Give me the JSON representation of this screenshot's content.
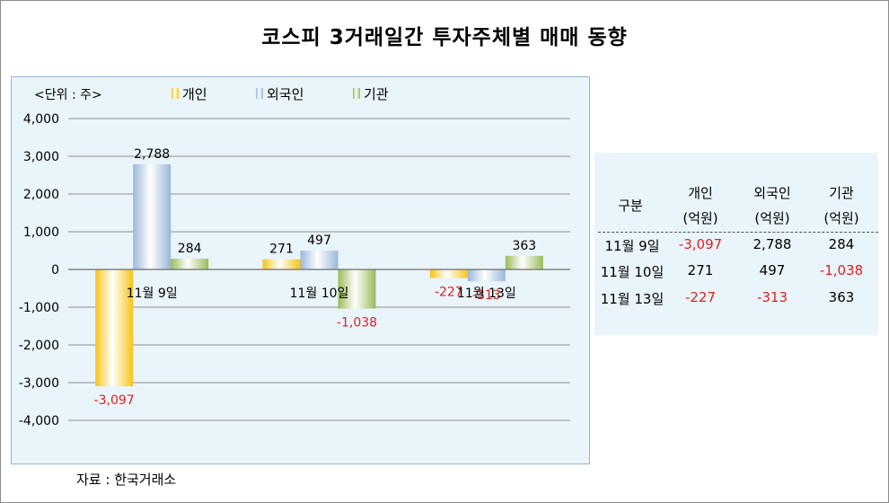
{
  "title": "코스피 3거래일간 투자주체별 매매 동향",
  "source_note": "자료 : 한국거래소",
  "chart_data": {
    "type": "bar",
    "unit_label": "<단위 : 주>",
    "categories": [
      "11월 9일",
      "11월 10일",
      "11월 13일"
    ],
    "series": [
      {
        "name": "개인",
        "values": [
          -3097,
          271,
          -227
        ],
        "color": "#f5c518"
      },
      {
        "name": "외국인",
        "values": [
          2788,
          497,
          -313
        ],
        "color": "#9bb7da"
      },
      {
        "name": "기관",
        "values": [
          284,
          -1038,
          363
        ],
        "color": "#9bbb59"
      }
    ],
    "ylim": [
      -4000,
      4000
    ],
    "yticks": [
      4000,
      3000,
      2000,
      1000,
      0,
      -1000,
      -2000,
      -3000,
      -4000
    ],
    "ytick_labels": [
      "4,000",
      "3,000",
      "2,000",
      "1,000",
      "0",
      "-1,000",
      "-2,000",
      "-3,000",
      "-4,000"
    ],
    "data_labels": [
      [
        "-3,097",
        "2,788",
        "284"
      ],
      [
        "271",
        "497",
        "-1,038"
      ],
      [
        "-227",
        "-313",
        "363"
      ]
    ],
    "grid": true,
    "legend_position": "top",
    "negative_label_color": "#e0211b"
  },
  "table": {
    "headers": [
      {
        "line1": "구분",
        "line2": ""
      },
      {
        "line1": "개인",
        "line2": "(억원)"
      },
      {
        "line1": "외국인",
        "line2": "(억원)"
      },
      {
        "line1": "기관",
        "line2": "(억원)"
      }
    ],
    "rows": [
      {
        "label": "11월 9일",
        "cells": [
          "-3,097",
          "2,788",
          "284"
        ]
      },
      {
        "label": "11월 10일",
        "cells": [
          "271",
          "497",
          "-1,038"
        ]
      },
      {
        "label": "11월 13일",
        "cells": [
          "-227",
          "-313",
          "363"
        ]
      }
    ]
  }
}
